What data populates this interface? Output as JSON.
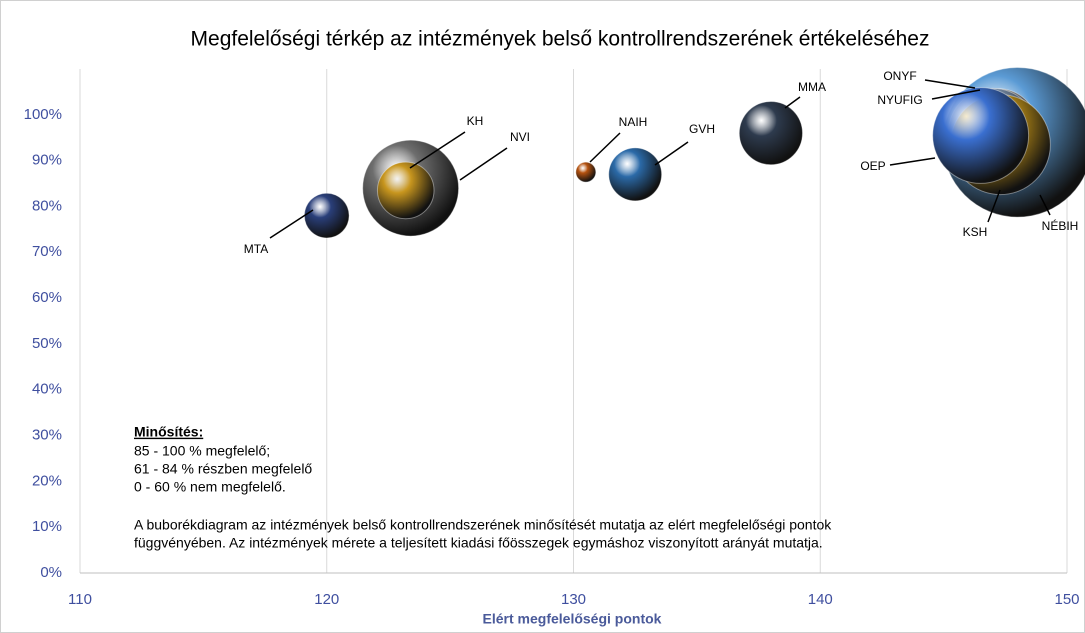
{
  "chart_data": {
    "type": "bubble",
    "title": "Megfelelőségi térkép az intézmények belső kontrollrendszerének értékeléséhez",
    "x_label": "Elért megfelelőségi pontok",
    "xlim": [
      110,
      150
    ],
    "xticks": [
      110,
      120,
      130,
      140,
      150
    ],
    "ylim": [
      0,
      110
    ],
    "yticks": [
      {
        "value": 0,
        "label": "0%"
      },
      {
        "value": 10,
        "label": "10%"
      },
      {
        "value": 20,
        "label": "20%"
      },
      {
        "value": 30,
        "label": "30%"
      },
      {
        "value": 40,
        "label": "40%"
      },
      {
        "value": 50,
        "label": "50%"
      },
      {
        "value": 60,
        "label": "60%"
      },
      {
        "value": 70,
        "label": "70%"
      },
      {
        "value": 80,
        "label": "80%"
      },
      {
        "value": 90,
        "label": "90%"
      },
      {
        "value": 100,
        "label": "100%"
      }
    ],
    "grid": true,
    "points": [
      {
        "name": "NVI",
        "x": 123.4,
        "y": 84,
        "size": 23,
        "color": "#6e6e6e"
      },
      {
        "name": "KH",
        "x": 123.2,
        "y": 83.5,
        "size": 8,
        "color": "#c8961e"
      },
      {
        "name": "MTA",
        "x": 120,
        "y": 78,
        "size": 5,
        "color": "#2a3f7a"
      },
      {
        "name": "NAIH",
        "x": 130.5,
        "y": 87.5,
        "size": 1,
        "color": "#b5520f"
      },
      {
        "name": "GVH",
        "x": 132.5,
        "y": 87,
        "size": 7,
        "color": "#2b6aa8"
      },
      {
        "name": "MMA",
        "x": 138,
        "y": 96,
        "size": 10,
        "color": "#2e3b4e"
      },
      {
        "name": "NÉBIH",
        "x": 148,
        "y": 94,
        "size": 56,
        "color": "#5b9bd5"
      },
      {
        "name": "ONYF",
        "x": 147.2,
        "y": 97,
        "size": 16,
        "color": "#a8a8a8"
      },
      {
        "name": "NYUFIG",
        "x": 147,
        "y": 96,
        "size": 20,
        "color": "#8aa4c4"
      },
      {
        "name": "KSH",
        "x": 147.3,
        "y": 93.5,
        "size": 25,
        "color": "#d4a017"
      },
      {
        "name": "OEP",
        "x": 146.5,
        "y": 95.5,
        "size": 23,
        "color": "#3a6fd0"
      }
    ],
    "legend_title": "Minősítés:",
    "legend_lines": [
      "85 - 100 % megfelelő;",
      "61 -  84 % részben megfelelő",
      "0   - 60 % nem megfelelő."
    ],
    "note_lines": [
      "A buborékdiagram az intézmények belső kontrollrendszerének minősítését mutatja az elért megfelelőségi pontok",
      "függvényében.  Az intézmények mérete a teljesített  kiadási főösszegek egymáshoz viszonyított   arányát mutatja."
    ]
  }
}
